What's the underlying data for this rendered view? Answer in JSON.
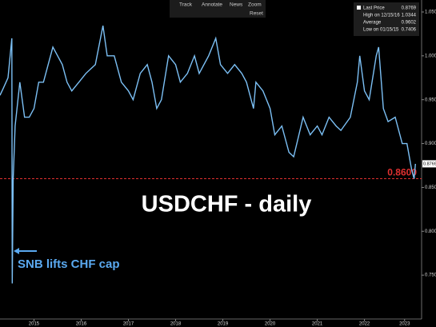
{
  "toolbar": [
    "Track",
    "Annotate",
    "News",
    "Zoom",
    "Reset"
  ],
  "legend_box": {
    "rows": [
      {
        "label": "Last Price",
        "value": "0.8769"
      },
      {
        "label": "High on 12/15/16",
        "value": "1.0344"
      },
      {
        "label": "Average",
        "value": "0.9602"
      },
      {
        "label": "Low on 01/15/15",
        "value": "0.7406"
      }
    ]
  },
  "chart_data": {
    "type": "line",
    "title": "USDCHF - daily",
    "annotation": "SNB lifts CHF cap",
    "reference_line": {
      "value": 0.86,
      "label": "0.8600",
      "color": "#e03030"
    },
    "last_price": 0.8769,
    "xlim": [
      2014.78,
      2023.71
    ],
    "xticks": [
      {
        "value": 2015.5,
        "label": "2015"
      },
      {
        "value": 2016.5,
        "label": "2016"
      },
      {
        "value": 2017.5,
        "label": "2017"
      },
      {
        "value": 2018.5,
        "label": "2018"
      },
      {
        "value": 2019.5,
        "label": "2019"
      },
      {
        "value": 2020.5,
        "label": "2020"
      },
      {
        "value": 2021.5,
        "label": "2021"
      },
      {
        "value": 2022.5,
        "label": "2022"
      },
      {
        "value": 2023.35,
        "label": "2023"
      }
    ],
    "ylim": [
      0.7,
      1.055
    ],
    "yticks": [
      {
        "value": 0.75,
        "label": "0.7500"
      },
      {
        "value": 0.8,
        "label": "0.8000"
      },
      {
        "value": 0.85,
        "label": "0.8500"
      },
      {
        "value": 0.9,
        "label": "0.9000"
      },
      {
        "value": 0.95,
        "label": "0.9500"
      },
      {
        "value": 1.0,
        "label": "1.0000"
      },
      {
        "value": 1.05,
        "label": "1.0500"
      }
    ],
    "series": [
      {
        "name": "USDCHF",
        "color": "#7cc0f5",
        "x": [
          2014.78,
          2014.85,
          2014.95,
          2015.03,
          2015.04,
          2015.06,
          2015.1,
          2015.2,
          2015.3,
          2015.4,
          2015.5,
          2015.6,
          2015.7,
          2015.8,
          2015.9,
          2016.0,
          2016.1,
          2016.2,
          2016.3,
          2016.45,
          2016.6,
          2016.8,
          2016.96,
          2017.05,
          2017.2,
          2017.35,
          2017.5,
          2017.6,
          2017.75,
          2017.9,
          2018.0,
          2018.1,
          2018.2,
          2018.35,
          2018.5,
          2018.6,
          2018.75,
          2018.9,
          2019.0,
          2019.2,
          2019.35,
          2019.45,
          2019.6,
          2019.75,
          2019.9,
          2020.0,
          2020.15,
          2020.2,
          2020.35,
          2020.5,
          2020.6,
          2020.75,
          2020.9,
          2021.0,
          2021.2,
          2021.35,
          2021.5,
          2021.6,
          2021.75,
          2021.9,
          2022.0,
          2022.2,
          2022.35,
          2022.4,
          2022.5,
          2022.6,
          2022.75,
          2022.8,
          2022.9,
          2023.0,
          2023.15,
          2023.3,
          2023.4,
          2023.5,
          2023.55,
          2023.58
        ],
        "values": [
          0.955,
          0.963,
          0.975,
          1.02,
          0.7406,
          0.86,
          0.92,
          0.97,
          0.93,
          0.93,
          0.94,
          0.97,
          0.97,
          0.99,
          1.01,
          1.0,
          0.99,
          0.97,
          0.96,
          0.97,
          0.98,
          0.99,
          1.0344,
          1.0,
          1.0,
          0.97,
          0.96,
          0.95,
          0.98,
          0.99,
          0.97,
          0.94,
          0.95,
          1.0,
          0.99,
          0.97,
          0.98,
          1.0,
          0.98,
          1.0,
          1.02,
          0.99,
          0.98,
          0.99,
          0.98,
          0.97,
          0.94,
          0.97,
          0.96,
          0.94,
          0.91,
          0.92,
          0.89,
          0.885,
          0.93,
          0.91,
          0.92,
          0.91,
          0.93,
          0.92,
          0.915,
          0.93,
          0.97,
          1.0,
          0.96,
          0.95,
          1.0,
          1.01,
          0.94,
          0.925,
          0.93,
          0.9,
          0.9,
          0.87,
          0.86,
          0.8769
        ]
      }
    ]
  }
}
